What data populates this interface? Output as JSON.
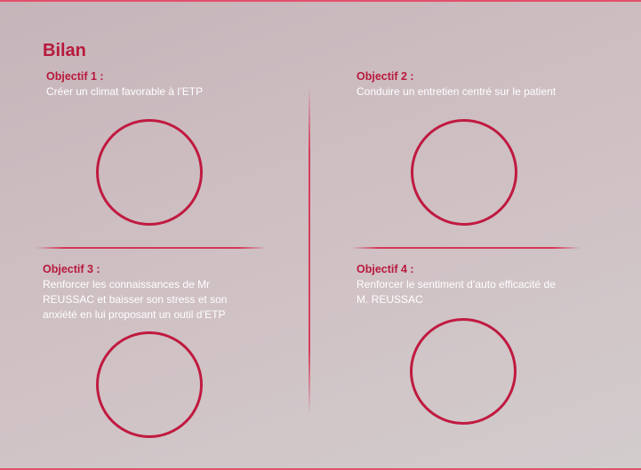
{
  "title": "Bilan",
  "objectives": [
    {
      "heading": "Objectif 1 :",
      "text": "Créer un climat favorable à l’ETP"
    },
    {
      "heading": "Objectif 2 :",
      "text": "Conduire un entretien centré sur le patient"
    },
    {
      "heading": "Objectif 3 :",
      "text": "Renforcer les connaissances de Mr REUSSAC et baisser son stress et son anxiété en lui proposant un outil d’ETP"
    },
    {
      "heading": "Objectif 4 :",
      "text": "Renforcer le sentiment d’auto efficacité de M. REUSSAC"
    }
  ],
  "colors": {
    "accent": "#b8193c",
    "circle": "#c01a40",
    "divider": "#d63052"
  }
}
